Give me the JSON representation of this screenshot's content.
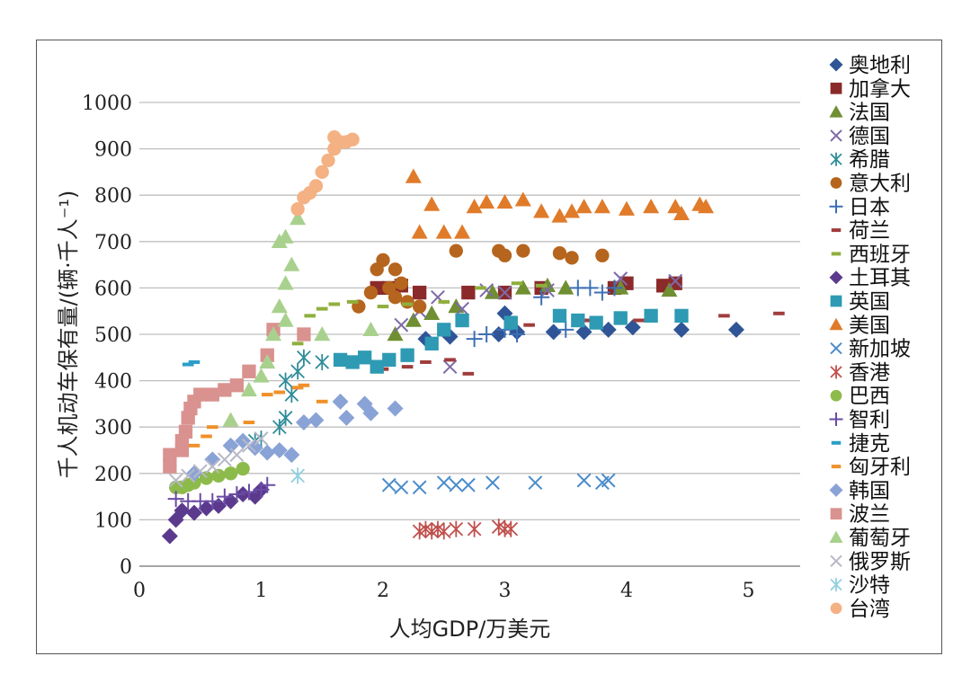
{
  "chart_data": {
    "type": "scatter",
    "xlabel": "人均GDP/万美元",
    "ylabel": "千人机动车保有量/(辆·千人⁻¹)",
    "xlim": [
      0,
      5.5
    ],
    "ylim": [
      0,
      1000
    ],
    "xticks": [
      "0",
      "1",
      "2",
      "3",
      "4",
      "5"
    ],
    "yticks": [
      "0",
      "100",
      "200",
      "300",
      "400",
      "500",
      "600",
      "700",
      "800",
      "900",
      "1000"
    ],
    "grid": "horizontal",
    "legend_position": "right",
    "series": [
      {
        "name": "奥地利",
        "marker": "diamond",
        "color": "#2f5597",
        "points": [
          [
            2.35,
            490
          ],
          [
            2.55,
            495
          ],
          [
            2.95,
            500
          ],
          [
            3.1,
            505
          ],
          [
            3.4,
            505
          ],
          [
            3.65,
            505
          ],
          [
            3.85,
            510
          ],
          [
            4.05,
            515
          ],
          [
            4.45,
            510
          ],
          [
            4.9,
            510
          ],
          [
            3.0,
            545
          ]
        ]
      },
      {
        "name": "加拿大",
        "marker": "square",
        "color": "#8b2a2a",
        "points": [
          [
            1.95,
            600
          ],
          [
            2.05,
            600
          ],
          [
            2.15,
            605
          ],
          [
            2.3,
            590
          ],
          [
            2.7,
            590
          ],
          [
            3.0,
            590
          ],
          [
            3.3,
            600
          ],
          [
            3.9,
            600
          ],
          [
            4.0,
            610
          ],
          [
            4.3,
            605
          ],
          [
            4.4,
            610
          ]
        ]
      },
      {
        "name": "法国",
        "marker": "triangle",
        "color": "#6f8f32",
        "points": [
          [
            2.1,
            500
          ],
          [
            2.25,
            530
          ],
          [
            2.4,
            545
          ],
          [
            2.6,
            560
          ],
          [
            2.9,
            590
          ],
          [
            3.15,
            600
          ],
          [
            3.35,
            605
          ],
          [
            3.5,
            600
          ],
          [
            3.95,
            600
          ],
          [
            4.35,
            595
          ]
        ]
      },
      {
        "name": "德国",
        "marker": "x",
        "color": "#7d6aa8",
        "points": [
          [
            2.15,
            520
          ],
          [
            2.3,
            550
          ],
          [
            2.45,
            580
          ],
          [
            2.55,
            430
          ],
          [
            2.65,
            555
          ],
          [
            2.85,
            595
          ],
          [
            3.0,
            590
          ],
          [
            3.35,
            595
          ],
          [
            3.95,
            620
          ],
          [
            4.4,
            615
          ]
        ]
      },
      {
        "name": "希腊",
        "marker": "asterisk",
        "color": "#2e8c99",
        "points": [
          [
            0.95,
            270
          ],
          [
            1.0,
            275
          ],
          [
            1.15,
            300
          ],
          [
            1.2,
            320
          ],
          [
            1.25,
            370
          ],
          [
            1.2,
            400
          ],
          [
            1.3,
            420
          ],
          [
            1.35,
            450
          ],
          [
            1.5,
            440
          ]
        ]
      },
      {
        "name": "意大利",
        "marker": "circle",
        "color": "#b5651d",
        "points": [
          [
            1.8,
            560
          ],
          [
            1.9,
            590
          ],
          [
            1.95,
            640
          ],
          [
            2.0,
            660
          ],
          [
            2.05,
            600
          ],
          [
            2.1,
            640
          ],
          [
            2.1,
            580
          ],
          [
            2.15,
            610
          ],
          [
            2.2,
            570
          ],
          [
            2.3,
            560
          ],
          [
            2.6,
            680
          ],
          [
            2.95,
            680
          ],
          [
            3.0,
            670
          ],
          [
            3.15,
            680
          ],
          [
            3.45,
            675
          ],
          [
            3.55,
            665
          ],
          [
            3.8,
            670
          ]
        ]
      },
      {
        "name": "日本",
        "marker": "plus",
        "color": "#3d6fb5",
        "points": [
          [
            2.75,
            490
          ],
          [
            2.85,
            500
          ],
          [
            3.0,
            510
          ],
          [
            3.1,
            500
          ],
          [
            3.3,
            580
          ],
          [
            3.5,
            510
          ],
          [
            3.6,
            600
          ],
          [
            3.7,
            600
          ],
          [
            3.8,
            590
          ],
          [
            3.9,
            600
          ]
        ]
      },
      {
        "name": "荷兰",
        "marker": "dash",
        "color": "#a03c3c",
        "points": [
          [
            2.0,
            425
          ],
          [
            2.2,
            430
          ],
          [
            2.35,
            440
          ],
          [
            2.55,
            445
          ],
          [
            2.7,
            415
          ],
          [
            3.2,
            520
          ],
          [
            3.7,
            530
          ],
          [
            4.1,
            530
          ],
          [
            4.8,
            540
          ],
          [
            5.25,
            545
          ]
        ]
      },
      {
        "name": "西班牙",
        "marker": "dash",
        "color": "#8faf3c",
        "points": [
          [
            1.3,
            480
          ],
          [
            1.4,
            540
          ],
          [
            1.5,
            555
          ],
          [
            1.6,
            565
          ],
          [
            1.75,
            570
          ],
          [
            2.0,
            560
          ],
          [
            2.2,
            565
          ],
          [
            2.5,
            570
          ],
          [
            2.8,
            600
          ],
          [
            3.1,
            610
          ],
          [
            3.3,
            605
          ]
        ]
      },
      {
        "name": "土耳其",
        "marker": "diamond",
        "color": "#5b3a8e",
        "points": [
          [
            0.25,
            65
          ],
          [
            0.3,
            100
          ],
          [
            0.35,
            120
          ],
          [
            0.45,
            115
          ],
          [
            0.55,
            125
          ],
          [
            0.65,
            130
          ],
          [
            0.75,
            140
          ],
          [
            0.85,
            155
          ],
          [
            0.95,
            150
          ],
          [
            1.0,
            165
          ]
        ]
      },
      {
        "name": "英国",
        "marker": "square",
        "color": "#2e9ab3",
        "points": [
          [
            1.65,
            445
          ],
          [
            1.75,
            440
          ],
          [
            1.85,
            450
          ],
          [
            1.95,
            430
          ],
          [
            2.05,
            445
          ],
          [
            2.2,
            455
          ],
          [
            2.4,
            480
          ],
          [
            2.5,
            510
          ],
          [
            2.65,
            530
          ],
          [
            3.05,
            525
          ],
          [
            3.45,
            540
          ],
          [
            3.6,
            530
          ],
          [
            3.75,
            525
          ],
          [
            3.95,
            535
          ],
          [
            4.2,
            540
          ],
          [
            4.45,
            540
          ]
        ]
      },
      {
        "name": "美国",
        "marker": "triangle",
        "color": "#e07b2a",
        "points": [
          [
            2.25,
            840
          ],
          [
            2.3,
            720
          ],
          [
            2.4,
            780
          ],
          [
            2.5,
            720
          ],
          [
            2.65,
            720
          ],
          [
            2.75,
            775
          ],
          [
            2.85,
            785
          ],
          [
            3.0,
            785
          ],
          [
            3.15,
            790
          ],
          [
            3.3,
            765
          ],
          [
            3.45,
            755
          ],
          [
            3.55,
            765
          ],
          [
            3.65,
            775
          ],
          [
            3.8,
            775
          ],
          [
            4.0,
            770
          ],
          [
            4.2,
            775
          ],
          [
            4.4,
            775
          ],
          [
            4.45,
            760
          ],
          [
            4.6,
            780
          ],
          [
            4.65,
            775
          ]
        ]
      },
      {
        "name": "新加坡",
        "marker": "x",
        "color": "#4a8ccb",
        "points": [
          [
            2.05,
            175
          ],
          [
            2.15,
            170
          ],
          [
            2.3,
            170
          ],
          [
            2.5,
            180
          ],
          [
            2.6,
            175
          ],
          [
            2.7,
            175
          ],
          [
            2.9,
            180
          ],
          [
            3.25,
            180
          ],
          [
            3.65,
            185
          ],
          [
            3.8,
            180
          ],
          [
            3.85,
            185
          ]
        ]
      },
      {
        "name": "香港",
        "marker": "asterisk",
        "color": "#c0504d",
        "points": [
          [
            2.3,
            75
          ],
          [
            2.35,
            80
          ],
          [
            2.4,
            75
          ],
          [
            2.45,
            80
          ],
          [
            2.5,
            75
          ],
          [
            2.6,
            80
          ],
          [
            2.75,
            80
          ],
          [
            2.95,
            85
          ],
          [
            3.0,
            80
          ],
          [
            3.05,
            80
          ]
        ]
      },
      {
        "name": "巴西",
        "marker": "circle",
        "color": "#8dbb4b",
        "points": [
          [
            0.3,
            170
          ],
          [
            0.35,
            170
          ],
          [
            0.4,
            175
          ],
          [
            0.45,
            180
          ],
          [
            0.55,
            190
          ],
          [
            0.65,
            195
          ],
          [
            0.75,
            200
          ],
          [
            0.85,
            210
          ]
        ]
      },
      {
        "name": "智利",
        "marker": "plus",
        "color": "#6b4ba5",
        "points": [
          [
            0.3,
            145
          ],
          [
            0.4,
            140
          ],
          [
            0.5,
            140
          ],
          [
            0.6,
            140
          ],
          [
            0.7,
            150
          ],
          [
            0.8,
            155
          ],
          [
            0.9,
            160
          ],
          [
            1.0,
            165
          ],
          [
            1.05,
            175
          ]
        ]
      },
      {
        "name": "捷克",
        "marker": "dash",
        "color": "#2a9ec9",
        "points": [
          [
            0.4,
            435
          ],
          [
            0.45,
            440
          ]
        ]
      },
      {
        "name": "匈牙利",
        "marker": "dash",
        "color": "#f0902a",
        "points": [
          [
            0.45,
            260
          ],
          [
            0.55,
            280
          ],
          [
            0.6,
            300
          ],
          [
            0.75,
            305
          ],
          [
            0.9,
            310
          ],
          [
            1.05,
            370
          ],
          [
            1.15,
            375
          ],
          [
            1.3,
            385
          ],
          [
            1.35,
            390
          ],
          [
            1.5,
            355
          ]
        ]
      },
      {
        "name": "韩国",
        "marker": "diamond",
        "color": "#8aa3d6",
        "points": [
          [
            0.45,
            200
          ],
          [
            0.6,
            230
          ],
          [
            0.75,
            260
          ],
          [
            0.85,
            270
          ],
          [
            0.95,
            255
          ],
          [
            1.05,
            245
          ],
          [
            1.15,
            250
          ],
          [
            1.25,
            240
          ],
          [
            1.35,
            310
          ],
          [
            1.45,
            315
          ],
          [
            1.65,
            355
          ],
          [
            1.7,
            320
          ],
          [
            1.85,
            350
          ],
          [
            1.9,
            330
          ],
          [
            2.1,
            340
          ]
        ]
      },
      {
        "name": "波兰",
        "marker": "square",
        "color": "#d9928f",
        "points": [
          [
            0.25,
            240
          ],
          [
            0.25,
            215
          ],
          [
            0.35,
            250
          ],
          [
            0.35,
            270
          ],
          [
            0.38,
            290
          ],
          [
            0.4,
            320
          ],
          [
            0.42,
            340
          ],
          [
            0.45,
            355
          ],
          [
            0.5,
            370
          ],
          [
            0.6,
            370
          ],
          [
            0.7,
            380
          ],
          [
            0.8,
            390
          ],
          [
            0.9,
            420
          ],
          [
            1.05,
            455
          ],
          [
            1.1,
            510
          ],
          [
            1.35,
            500
          ]
        ]
      },
      {
        "name": "葡萄牙",
        "marker": "triangle",
        "color": "#a9d18e",
        "points": [
          [
            0.75,
            315
          ],
          [
            0.9,
            380
          ],
          [
            1.0,
            410
          ],
          [
            1.05,
            440
          ],
          [
            1.1,
            500
          ],
          [
            1.15,
            560
          ],
          [
            1.2,
            530
          ],
          [
            1.2,
            610
          ],
          [
            1.25,
            650
          ],
          [
            1.15,
            700
          ],
          [
            1.2,
            710
          ],
          [
            1.3,
            750
          ],
          [
            1.5,
            500
          ],
          [
            1.9,
            510
          ]
        ]
      },
      {
        "name": "俄罗斯",
        "marker": "x",
        "color": "#b8b8c8",
        "points": [
          [
            0.3,
            185
          ],
          [
            0.4,
            195
          ],
          [
            0.5,
            205
          ],
          [
            0.6,
            215
          ],
          [
            0.7,
            230
          ],
          [
            0.8,
            240
          ],
          [
            0.9,
            260
          ],
          [
            1.0,
            275
          ]
        ]
      },
      {
        "name": "沙特",
        "marker": "asterisk",
        "color": "#8fd0e0",
        "points": [
          [
            1.3,
            195
          ]
        ]
      },
      {
        "name": "台湾",
        "marker": "circle",
        "color": "#f4b183",
        "points": [
          [
            1.3,
            770
          ],
          [
            1.35,
            795
          ],
          [
            1.4,
            805
          ],
          [
            1.45,
            820
          ],
          [
            1.5,
            850
          ],
          [
            1.55,
            875
          ],
          [
            1.6,
            900
          ],
          [
            1.65,
            915
          ],
          [
            1.6,
            925
          ],
          [
            1.7,
            915
          ],
          [
            1.75,
            920
          ]
        ]
      }
    ]
  }
}
